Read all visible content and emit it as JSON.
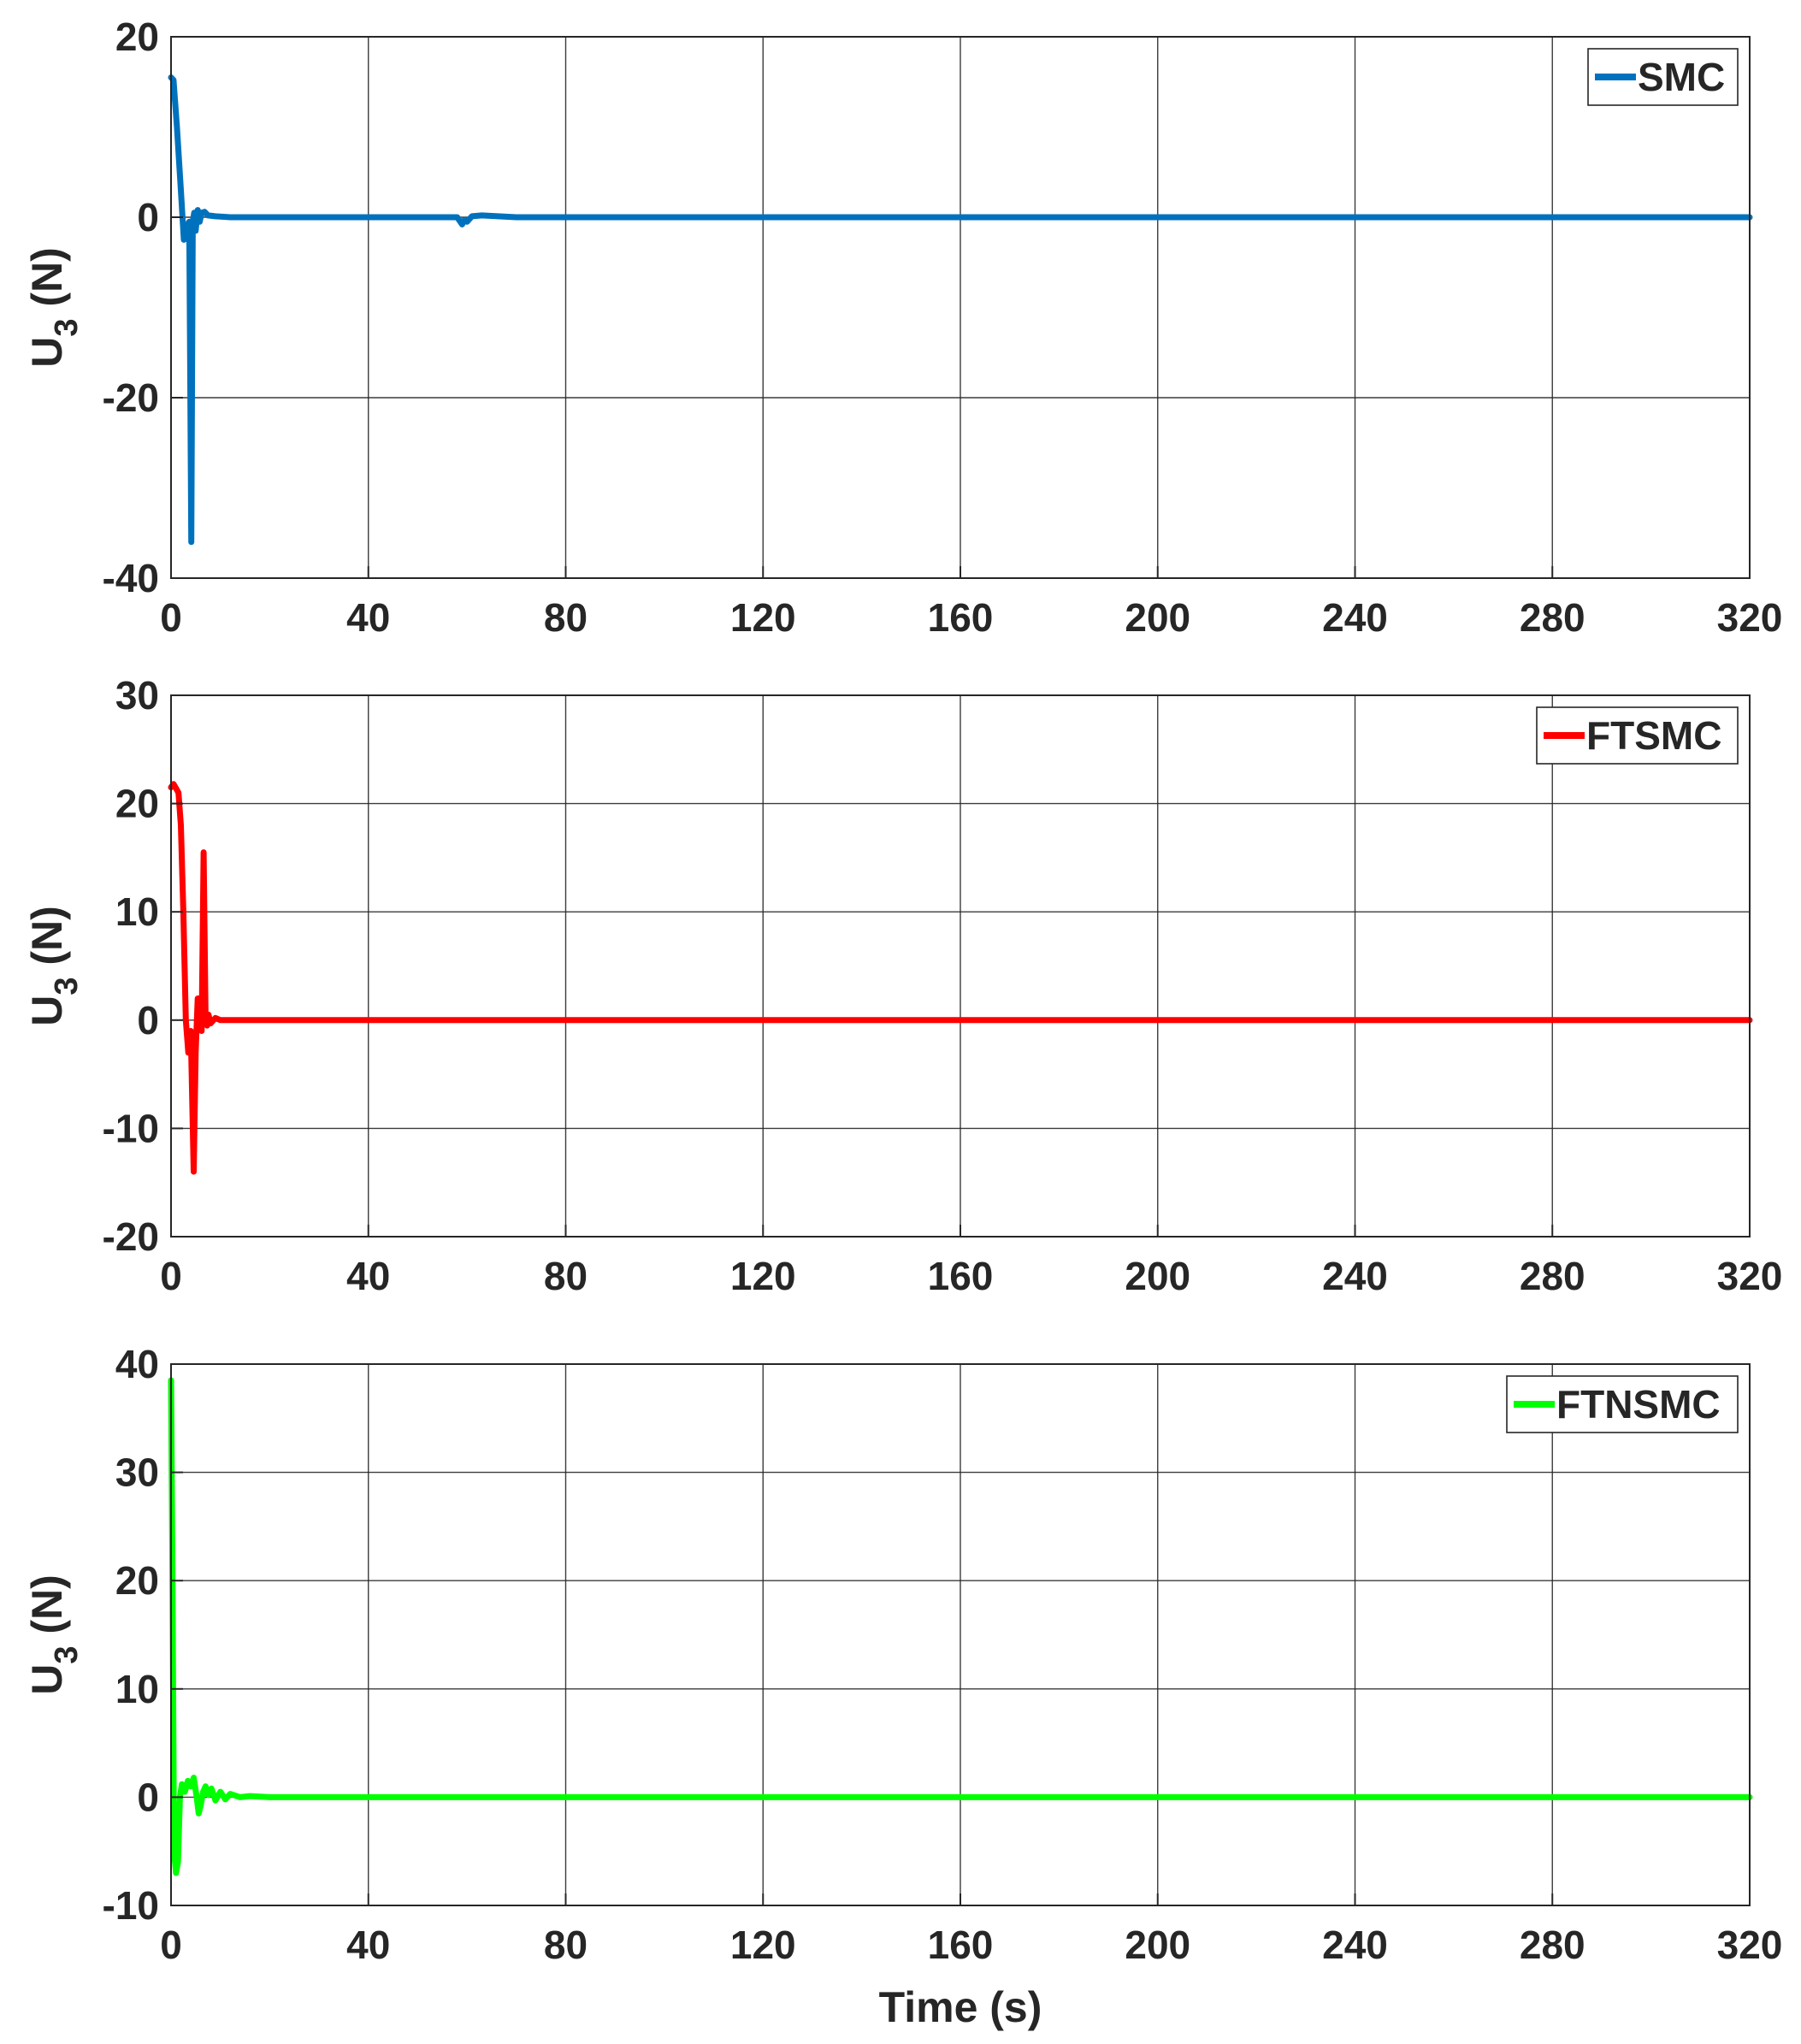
{
  "chart_data": [
    {
      "type": "line",
      "ylabel_main": "U",
      "ylabel_sub": "3",
      "ylabel_unit": " (N)",
      "xlabel": "",
      "xlim": [
        0,
        320
      ],
      "ylim": [
        -40,
        20
      ],
      "xticks": [
        0,
        40,
        80,
        120,
        160,
        200,
        240,
        280,
        320
      ],
      "yticks": [
        -40,
        -20,
        0,
        20
      ],
      "grid": true,
      "legend_position": "top-right",
      "series": [
        {
          "name": "SMC",
          "color": "#0072BD",
          "x": [
            0,
            0.5,
            1.2,
            2,
            2.6,
            3.2,
            3.7,
            4.1,
            4.4,
            4.7,
            5.0,
            5.4,
            5.8,
            6.2,
            6.8,
            7.5,
            9,
            12,
            20,
            40,
            58,
            59,
            59.5,
            60,
            61,
            63,
            70,
            100,
            150,
            200,
            250,
            300,
            320
          ],
          "y": [
            15.5,
            15.2,
            10,
            3,
            -2.5,
            -1,
            -0.5,
            -36,
            -0.5,
            0.5,
            -1.5,
            0.8,
            -0.5,
            0.5,
            0.6,
            0.2,
            0.1,
            0,
            0,
            0,
            0,
            -0.8,
            -0.3,
            -0.5,
            0.1,
            0.2,
            0,
            0,
            0,
            0,
            0,
            0,
            0
          ]
        }
      ]
    },
    {
      "type": "line",
      "ylabel_main": "U",
      "ylabel_sub": "3",
      "ylabel_unit": " (N)",
      "xlabel": "",
      "xlim": [
        0,
        320
      ],
      "ylim": [
        -20,
        30
      ],
      "xticks": [
        0,
        40,
        80,
        120,
        160,
        200,
        240,
        280,
        320
      ],
      "yticks": [
        -20,
        -10,
        0,
        10,
        20,
        30
      ],
      "grid": true,
      "legend_position": "top-right",
      "series": [
        {
          "name": "FTSMC",
          "color": "#FF0000",
          "x": [
            0,
            0.5,
            1.5,
            2.0,
            2.5,
            3.0,
            3.5,
            4.0,
            4.6,
            5.0,
            5.4,
            5.8,
            6.2,
            6.6,
            7.0,
            7.3,
            7.6,
            8.0,
            9,
            10,
            15,
            20,
            50,
            100,
            150,
            200,
            250,
            300,
            320
          ],
          "y": [
            21.5,
            21.8,
            21,
            18,
            10,
            0,
            -3,
            -1,
            -14,
            -3,
            2,
            2,
            -1,
            15.5,
            0,
            -0.5,
            0.5,
            -0.3,
            0.2,
            0,
            0,
            0,
            0,
            0,
            0,
            0,
            0,
            0,
            0
          ]
        }
      ]
    },
    {
      "type": "line",
      "ylabel_main": "U",
      "ylabel_sub": "3",
      "ylabel_unit": " (N)",
      "xlabel": "Time (s)",
      "xlim": [
        0,
        320
      ],
      "ylim": [
        -10,
        40
      ],
      "xticks": [
        0,
        40,
        80,
        120,
        160,
        200,
        240,
        280,
        320
      ],
      "yticks": [
        -10,
        0,
        10,
        20,
        30,
        40
      ],
      "grid": true,
      "legend_position": "top-right",
      "series": [
        {
          "name": "FTNSMC",
          "color": "#00FF00",
          "x": [
            0,
            0.3,
            0.6,
            1.0,
            1.4,
            1.8,
            2.2,
            2.8,
            3.4,
            4.0,
            4.6,
            5.2,
            5.6,
            6.0,
            6.5,
            7.0,
            7.6,
            8.2,
            9.0,
            10,
            11,
            12,
            14,
            16,
            20,
            40,
            100,
            150,
            200,
            250,
            300,
            320
          ],
          "y": [
            38.5,
            20,
            -5,
            -7,
            -6,
            0,
            1.2,
            0.5,
            1.5,
            1.0,
            1.8,
            0,
            -1.5,
            -0.8,
            0.5,
            1.0,
            0.2,
            0.8,
            -0.3,
            0.5,
            -0.2,
            0.3,
            0,
            0.1,
            0,
            0,
            0,
            0,
            0,
            0,
            0,
            0
          ]
        }
      ]
    }
  ]
}
